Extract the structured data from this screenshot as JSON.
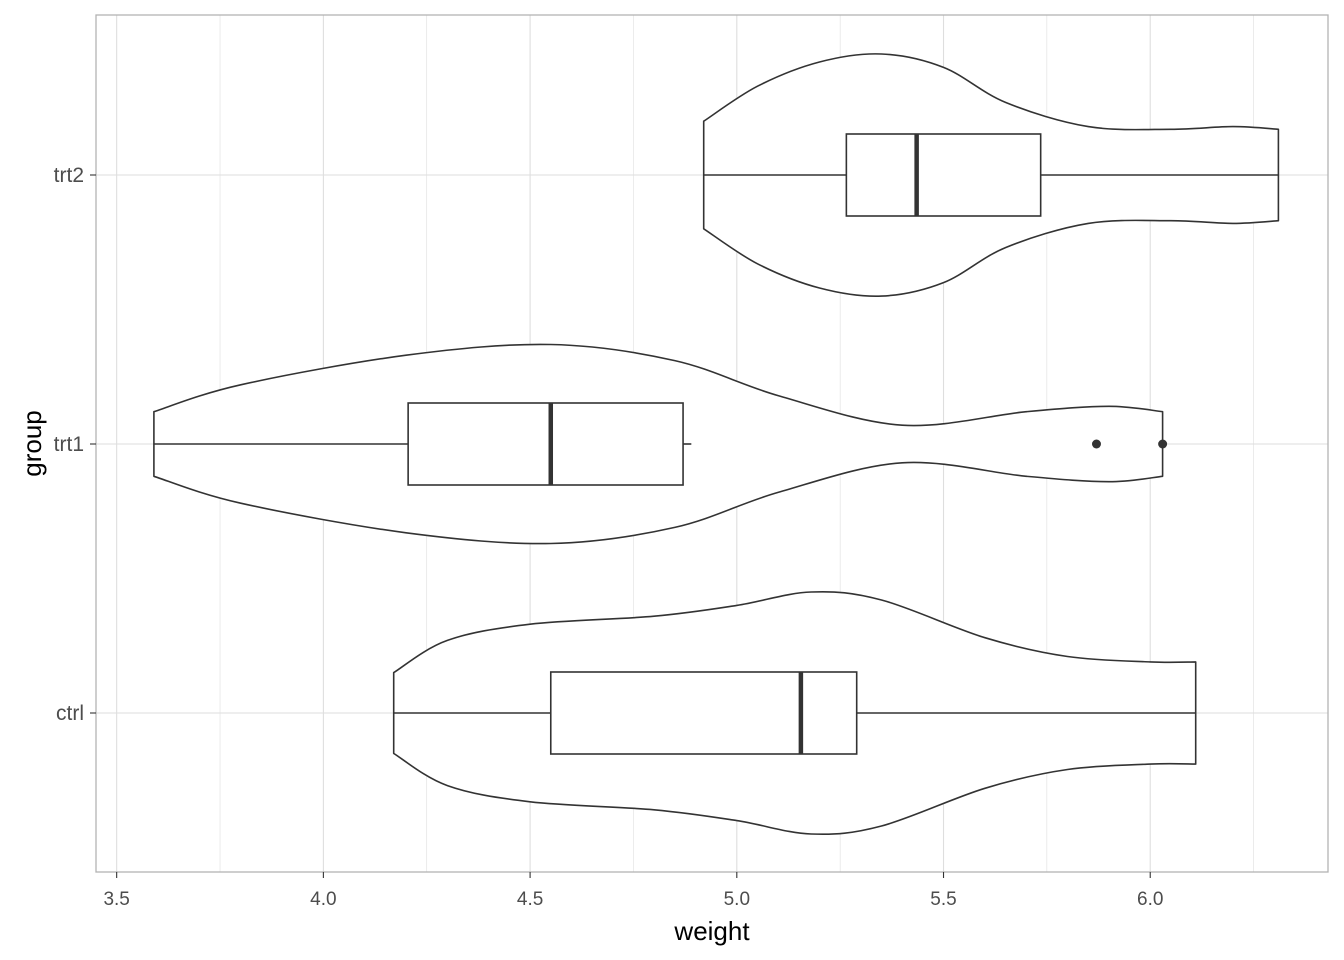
{
  "chart_data": {
    "type": "violin",
    "orientation": "horizontal",
    "overlay": "boxplot",
    "xlabel": "weight",
    "ylabel": "group",
    "xlim": [
      3.45,
      6.43
    ],
    "x_ticks": [
      "3.5",
      "4.0",
      "4.5",
      "5.0",
      "5.5",
      "6.0"
    ],
    "grid": true,
    "theme": "light",
    "colors": {
      "panel_border": "#b3b3b3",
      "grid": "#dedede",
      "stroke": "#333333",
      "text": "#4d4d4d"
    },
    "categories": [
      "ctrl",
      "trt1",
      "trt2"
    ],
    "groups": [
      {
        "name": "ctrl",
        "min": 4.17,
        "max": 6.11,
        "box": {
          "q1": 4.55,
          "median": 5.155,
          "q3": 5.29,
          "whisker_low": 4.17,
          "whisker_high": 6.11
        },
        "outliers": [],
        "density": [
          [
            4.17,
            0.15
          ],
          [
            4.3,
            0.27
          ],
          [
            4.5,
            0.33
          ],
          [
            4.8,
            0.36
          ],
          [
            5.0,
            0.4
          ],
          [
            5.18,
            0.45
          ],
          [
            5.35,
            0.42
          ],
          [
            5.6,
            0.28
          ],
          [
            5.8,
            0.21
          ],
          [
            6.0,
            0.19
          ],
          [
            6.11,
            0.19
          ]
        ]
      },
      {
        "name": "trt1",
        "min": 3.59,
        "max": 6.03,
        "box": {
          "q1": 4.205,
          "median": 4.55,
          "q3": 4.87,
          "whisker_low": 3.59,
          "whisker_high": 4.89
        },
        "outliers": [
          5.87,
          6.03
        ],
        "density": [
          [
            3.59,
            0.12
          ],
          [
            3.8,
            0.22
          ],
          [
            4.2,
            0.33
          ],
          [
            4.55,
            0.37
          ],
          [
            4.85,
            0.31
          ],
          [
            5.1,
            0.18
          ],
          [
            5.4,
            0.07
          ],
          [
            5.7,
            0.12
          ],
          [
            5.9,
            0.14
          ],
          [
            6.03,
            0.12
          ]
        ]
      },
      {
        "name": "trt2",
        "min": 4.92,
        "max": 6.31,
        "box": {
          "q1": 5.265,
          "median": 5.435,
          "q3": 5.735,
          "whisker_low": 4.92,
          "whisker_high": 6.31
        },
        "outliers": [],
        "density": [
          [
            4.92,
            0.2
          ],
          [
            5.05,
            0.33
          ],
          [
            5.2,
            0.42
          ],
          [
            5.35,
            0.45
          ],
          [
            5.5,
            0.4
          ],
          [
            5.65,
            0.27
          ],
          [
            5.85,
            0.18
          ],
          [
            6.05,
            0.17
          ],
          [
            6.2,
            0.18
          ],
          [
            6.31,
            0.17
          ]
        ]
      }
    ]
  }
}
